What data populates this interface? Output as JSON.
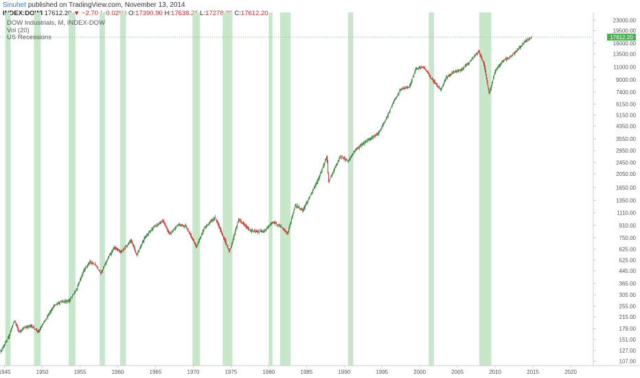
{
  "header": {
    "author": "Sinuhet",
    "published": " published on TradingView.com, November 13, 2014",
    "symbol": "INDEX:DOWI",
    "last": "17612.20",
    "change": "▼ −2.70 (−0.02%)",
    "o_label": "O:",
    "o_value": "17390.90",
    "h_label": "H:",
    "h_value": "17638.21",
    "l_label": "L:",
    "l_value": "17278.36",
    "c_label": "C:",
    "c_value": "17612.20"
  },
  "legend": {
    "series": "DOW Industrials, M, INDEX-DOW",
    "volume": "Vol (20)",
    "overlay": "US Recessions"
  },
  "colors": {
    "recession": "#c8e6c9",
    "up": "#2e7d32",
    "down": "#c62828",
    "lastline": "#4caf50",
    "author": "#2f72c9"
  },
  "chart_data": {
    "type": "candlestick",
    "title": "DOW Industrials, M, INDEX-DOW",
    "scale": "log",
    "ylim": [
      100,
      26000
    ],
    "xlim": [
      1944.4,
      2023.0
    ],
    "y_ticks": [
      "23000.00",
      "19500.00",
      "16000.00",
      "13500.00",
      "11000.00",
      "9000.00",
      "7400.00",
      "6150.00",
      "5150.00",
      "4350.00",
      "3550.00",
      "2950.00",
      "2450.00",
      "2050.00",
      "1650.00",
      "1350.00",
      "1110.00",
      "910.00",
      "750.00",
      "625.00",
      "525.00",
      "445.00",
      "365.00",
      "305.00",
      "255.00",
      "215.00",
      "179.00",
      "151.00",
      "127.00",
      "107.00"
    ],
    "x_ticks": [
      "1945",
      "1950",
      "1955",
      "1960",
      "1965",
      "1970",
      "1975",
      "1980",
      "1985",
      "1990",
      "1995",
      "2000",
      "2005",
      "2010",
      "2015",
      "2020"
    ],
    "last_value": "17612.20",
    "recessions": [
      [
        1945.1,
        1945.8
      ],
      [
        1948.9,
        1949.8
      ],
      [
        1953.5,
        1954.4
      ],
      [
        1957.6,
        1958.3
      ],
      [
        1960.3,
        1961.1
      ],
      [
        1969.9,
        1970.9
      ],
      [
        1973.9,
        1975.2
      ],
      [
        1980.0,
        1980.5
      ],
      [
        1981.5,
        1982.9
      ],
      [
        1990.5,
        1991.2
      ],
      [
        2001.2,
        2001.9
      ],
      [
        2007.9,
        2009.5
      ]
    ],
    "anchors": [
      [
        1944.5,
        126
      ],
      [
        1945.5,
        155
      ],
      [
        1946.3,
        205
      ],
      [
        1946.9,
        170
      ],
      [
        1947.5,
        180
      ],
      [
        1948.5,
        188
      ],
      [
        1949.5,
        170
      ],
      [
        1950.5,
        210
      ],
      [
        1951.5,
        255
      ],
      [
        1952.5,
        275
      ],
      [
        1953.5,
        275
      ],
      [
        1954.5,
        330
      ],
      [
        1955.5,
        450
      ],
      [
        1956.3,
        510
      ],
      [
        1957.0,
        490
      ],
      [
        1957.8,
        430
      ],
      [
        1958.5,
        520
      ],
      [
        1959.5,
        640
      ],
      [
        1960.5,
        600
      ],
      [
        1961.8,
        720
      ],
      [
        1962.5,
        570
      ],
      [
        1963.5,
        740
      ],
      [
        1964.5,
        860
      ],
      [
        1966.0,
        980
      ],
      [
        1966.8,
        790
      ],
      [
        1968.0,
        920
      ],
      [
        1969.0,
        900
      ],
      [
        1970.4,
        650
      ],
      [
        1971.5,
        880
      ],
      [
        1972.9,
        1030
      ],
      [
        1974.8,
        600
      ],
      [
        1976.0,
        1000
      ],
      [
        1977.5,
        840
      ],
      [
        1978.5,
        820
      ],
      [
        1979.5,
        840
      ],
      [
        1980.5,
        960
      ],
      [
        1981.5,
        900
      ],
      [
        1982.5,
        800
      ],
      [
        1983.5,
        1250
      ],
      [
        1984.5,
        1150
      ],
      [
        1985.5,
        1450
      ],
      [
        1986.5,
        1850
      ],
      [
        1987.7,
        2700
      ],
      [
        1987.9,
        1800
      ],
      [
        1988.5,
        2100
      ],
      [
        1989.5,
        2700
      ],
      [
        1990.5,
        2500
      ],
      [
        1991.5,
        3000
      ],
      [
        1993.0,
        3450
      ],
      [
        1994.5,
        3850
      ],
      [
        1995.5,
        4800
      ],
      [
        1996.5,
        6300
      ],
      [
        1997.5,
        7800
      ],
      [
        1998.6,
        8000
      ],
      [
        1999.5,
        10800
      ],
      [
        2000.5,
        11000
      ],
      [
        2001.7,
        9000
      ],
      [
        2002.8,
        7700
      ],
      [
        2003.5,
        9300
      ],
      [
        2004.5,
        10200
      ],
      [
        2005.5,
        10500
      ],
      [
        2006.5,
        11800
      ],
      [
        2007.8,
        14100
      ],
      [
        2008.5,
        11500
      ],
      [
        2009.2,
        7200
      ],
      [
        2010.0,
        10400
      ],
      [
        2011.0,
        12100
      ],
      [
        2012.0,
        12900
      ],
      [
        2013.0,
        14500
      ],
      [
        2014.0,
        16500
      ],
      [
        2014.87,
        17612.2
      ]
    ]
  }
}
